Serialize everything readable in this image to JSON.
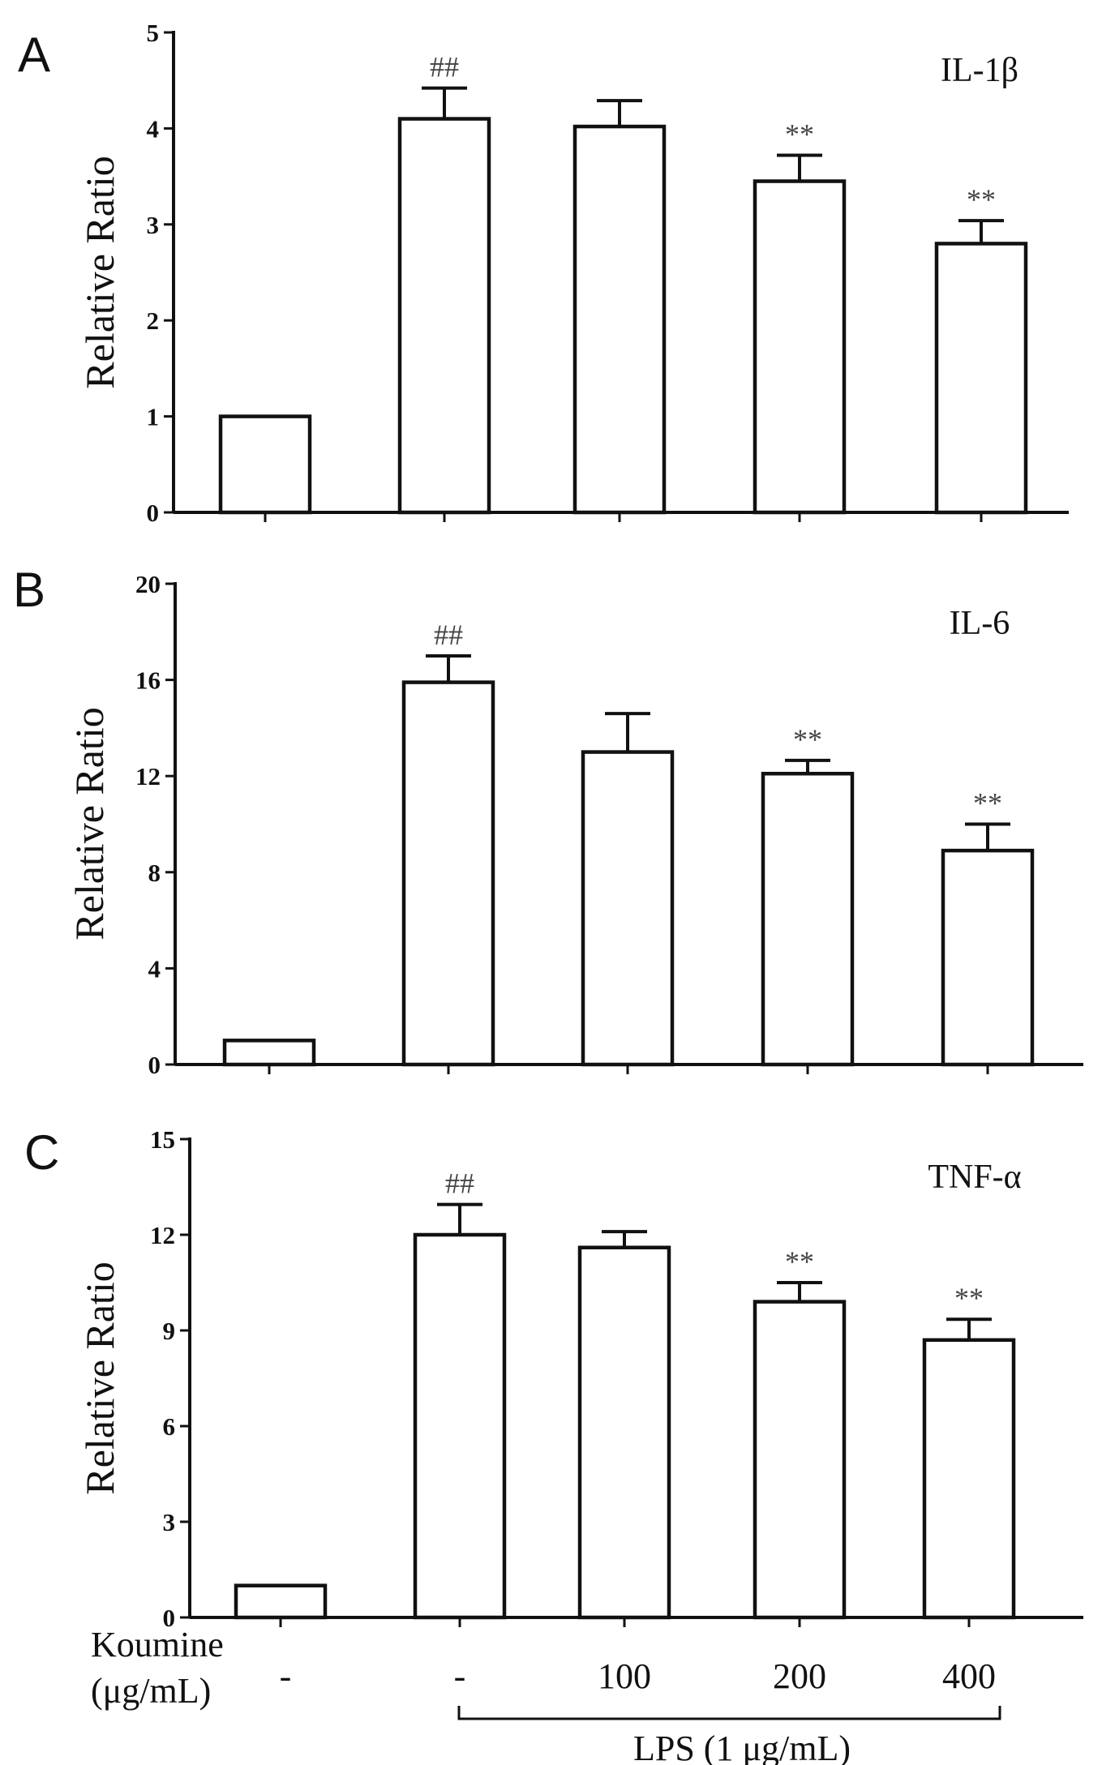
{
  "chart_data": [
    {
      "type": "bar",
      "panel": "A",
      "title": "IL-1β",
      "ylabel": "Relative Ratio",
      "ylim": [
        0,
        5
      ],
      "yticks": [
        0,
        1,
        2,
        3,
        4,
        5
      ],
      "categories": [
        "-",
        "-",
        "100",
        "200",
        "400"
      ],
      "values": [
        1.0,
        4.1,
        4.02,
        3.45,
        2.8
      ],
      "errors": [
        0.0,
        0.32,
        0.27,
        0.27,
        0.24
      ],
      "annotations": [
        "",
        "##",
        "",
        "**",
        "**"
      ]
    },
    {
      "type": "bar",
      "panel": "B",
      "title": "IL-6",
      "ylabel": "Relative Ratio",
      "ylim": [
        0,
        20
      ],
      "yticks": [
        0,
        4,
        8,
        12,
        16,
        20
      ],
      "categories": [
        "-",
        "-",
        "100",
        "200",
        "400"
      ],
      "values": [
        1.0,
        15.9,
        13.0,
        12.1,
        8.9
      ],
      "errors": [
        0.0,
        1.1,
        1.6,
        0.55,
        1.1
      ],
      "annotations": [
        "",
        "##",
        "",
        "**",
        "**"
      ]
    },
    {
      "type": "bar",
      "panel": "C",
      "title": "TNF-α",
      "ylabel": "Relative Ratio",
      "ylim": [
        0,
        15
      ],
      "yticks": [
        0,
        3,
        6,
        9,
        12,
        15
      ],
      "categories": [
        "-",
        "-",
        "100",
        "200",
        "400"
      ],
      "values": [
        1.0,
        12.0,
        11.6,
        9.9,
        8.7
      ],
      "errors": [
        0.0,
        0.95,
        0.5,
        0.6,
        0.65
      ],
      "annotations": [
        "",
        "##",
        "",
        "**",
        "**"
      ]
    }
  ],
  "xaxis": {
    "koumine_label_line1": "Koumine",
    "koumine_label_line2": "(μg/mL)",
    "condition_labels": [
      "-",
      "-",
      "100",
      "200",
      "400"
    ],
    "lps_label": "LPS (1 μg/mL)"
  }
}
